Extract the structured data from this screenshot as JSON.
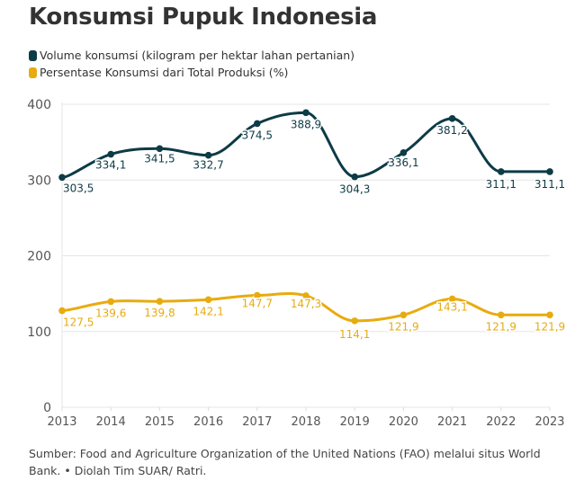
{
  "chart_data": {
    "type": "line",
    "title": "Konsumsi Pupuk Indonesia",
    "x": [
      "2013",
      "2014",
      "2015",
      "2016",
      "2017",
      "2018",
      "2019",
      "2020",
      "2021",
      "2022",
      "2023"
    ],
    "ylim": [
      0,
      400
    ],
    "yticks": [
      "0",
      "100",
      "200",
      "300",
      "400"
    ],
    "grid": true,
    "legend_position": "top-left",
    "series": [
      {
        "name": "Volume konsumsi (kilogram per hektar lahan pertanian)",
        "color": "#0d3b46",
        "values": [
          303.5,
          334.1,
          341.5,
          332.7,
          374.5,
          388.9,
          304.3,
          336.1,
          381.2,
          311.1,
          311.1
        ],
        "labels": [
          "303,5",
          "334,1",
          "341,5",
          "332,7",
          "374,5",
          "388,9",
          "304,3",
          "336,1",
          "381,2",
          "311,1",
          "311,1"
        ]
      },
      {
        "name": "Persentase Konsumsi dari Total Produksi (%)",
        "color": "#e8ab0f",
        "values": [
          127.5,
          139.6,
          139.8,
          142.1,
          147.7,
          147.3,
          114.1,
          121.9,
          143.1,
          121.9,
          121.9
        ],
        "labels": [
          "127,5",
          "139,6",
          "139,8",
          "142,1",
          "147,7",
          "147,3",
          "114,1",
          "121,9",
          "143,1",
          "121,9",
          "121,9"
        ]
      }
    ]
  },
  "source": "Sumber: Food and Agriculture Organization of the United Nations (FAO) melalui situs World Bank. • Diolah Tim SUAR/ Ratri."
}
